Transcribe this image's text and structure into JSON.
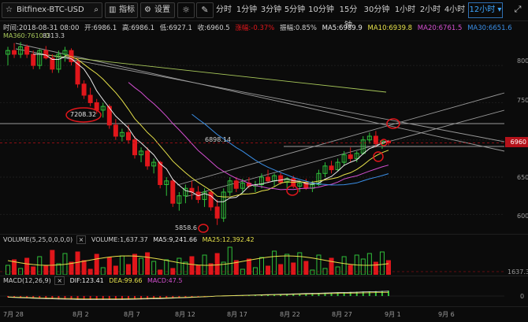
{
  "toolbar": {
    "symbol": "Bitfinex-BTC-USD",
    "indicators_label": "指标",
    "settings_label": "设置",
    "timeframes": [
      "分时",
      "1分钟",
      "3分钟",
      "5分钟",
      "10分钟",
      "15分钟",
      "30分钟",
      "1小时",
      "2小时",
      "4小时",
      "12小时"
    ],
    "active_timeframe": "12小时"
  },
  "info": {
    "time": "时间:2018-08-31 08:00",
    "open": "开:6986.1",
    "high": "高:6986.1",
    "low": "低:6927.1",
    "close": "收:6960.5",
    "change": "涨幅:-0.37%",
    "amplitude": "振幅:0.85%",
    "ma5": "MA5:6989.9",
    "ma10": "MA10:6939.8",
    "ma20": "MA20:6761.5",
    "ma30": "MA30:6651.6",
    "ma360": "MA360:7610.0",
    "peak_label": "8313.3"
  },
  "price_axis": {
    "ticks": [
      "800",
      "750",
      "700",
      "650",
      "600"
    ],
    "current_price": "6960"
  },
  "annotations": {
    "circled_price": "7208.32",
    "level_label": "6898.14",
    "low_label": "5858.6"
  },
  "volume": {
    "header": "VOLUME(5,25,0,0,0,0)",
    "volume": "VOLUME:1,637.37",
    "ma5": "MA5:9,241.66",
    "ma25": "MA25:12,392.42",
    "axis_label": "1637.3"
  },
  "macd": {
    "header": "MACD(12,26,9)",
    "dif": "DIF:123.41",
    "dea": "DEA:99.66",
    "macd": "MACD:47.5",
    "axis_label": "0"
  },
  "x_axis": {
    "labels": [
      "7月 28",
      "8月 2",
      "8月 7",
      "8月 12",
      "8月 17",
      "8月 22",
      "8月 27",
      "9月 1",
      "9月 6"
    ]
  },
  "colors": {
    "up": "#2fbf3a",
    "down": "#e0161b",
    "ma5": "#e9e9e9",
    "ma10": "#e5e04a",
    "ma20": "#d34fd0",
    "ma30": "#3a8ee6",
    "ma360": "#a8c85a",
    "accent": "#3ea6ff"
  },
  "chart_data": {
    "type": "candlestick",
    "series": [
      {
        "name": "BTC-USD 12h",
        "ohlc": [
          [
            8150,
            8250,
            8000,
            8200
          ],
          [
            8200,
            8300,
            8100,
            8150
          ],
          [
            8150,
            8313,
            8100,
            8250
          ],
          [
            8250,
            8280,
            8100,
            8150
          ],
          [
            8150,
            8200,
            7950,
            8000
          ],
          [
            8000,
            8220,
            7950,
            8200
          ],
          [
            8200,
            8260,
            8080,
            8100
          ],
          [
            8100,
            8150,
            7900,
            7950
          ],
          [
            7950,
            8200,
            7900,
            8150
          ],
          [
            8150,
            8250,
            8050,
            8200
          ],
          [
            8200,
            8230,
            8000,
            8050
          ],
          [
            8050,
            8100,
            7700,
            7750
          ],
          [
            7750,
            7800,
            7550,
            7600
          ],
          [
            7600,
            7700,
            7450,
            7500
          ],
          [
            7500,
            7550,
            7350,
            7400
          ],
          [
            7400,
            7500,
            7300,
            7450
          ],
          [
            7450,
            7480,
            7150,
            7200
          ],
          [
            7200,
            7280,
            7000,
            7050
          ],
          [
            7050,
            7150,
            6980,
            7100
          ],
          [
            7100,
            7200,
            6950,
            7000
          ],
          [
            7000,
            7050,
            6750,
            6800
          ],
          [
            6800,
            6900,
            6700,
            6850
          ],
          [
            6850,
            6900,
            6600,
            6650
          ],
          [
            6650,
            6750,
            6550,
            6700
          ],
          [
            6700,
            6720,
            6350,
            6400
          ],
          [
            6400,
            6500,
            6250,
            6450
          ],
          [
            6450,
            6480,
            6100,
            6150
          ],
          [
            6150,
            6300,
            6050,
            6250
          ],
          [
            6250,
            6400,
            6150,
            6350
          ],
          [
            6350,
            6450,
            6200,
            6300
          ],
          [
            6300,
            6380,
            6150,
            6200
          ],
          [
            6200,
            6350,
            6100,
            6300
          ],
          [
            6300,
            6320,
            6050,
            6100
          ],
          [
            6100,
            6200,
            5858,
            5950
          ],
          [
            5950,
            6350,
            5900,
            6300
          ],
          [
            6300,
            6500,
            6250,
            6450
          ],
          [
            6450,
            6500,
            6300,
            6350
          ],
          [
            6350,
            6480,
            6280,
            6420
          ],
          [
            6420,
            6500,
            6350,
            6380
          ],
          [
            6380,
            6450,
            6300,
            6400
          ],
          [
            6400,
            6550,
            6350,
            6500
          ],
          [
            6500,
            6600,
            6420,
            6450
          ],
          [
            6450,
            6550,
            6380,
            6520
          ],
          [
            6520,
            6560,
            6400,
            6430
          ],
          [
            6430,
            6500,
            6350,
            6480
          ],
          [
            6480,
            6520,
            6350,
            6380
          ],
          [
            6380,
            6450,
            6300,
            6420
          ],
          [
            6420,
            6480,
            6330,
            6350
          ],
          [
            6350,
            6450,
            6300,
            6400
          ],
          [
            6400,
            6600,
            6380,
            6550
          ],
          [
            6550,
            6700,
            6500,
            6650
          ],
          [
            6650,
            6720,
            6550,
            6600
          ],
          [
            6600,
            6750,
            6580,
            6700
          ],
          [
            6700,
            6850,
            6650,
            6800
          ],
          [
            6800,
            6900,
            6700,
            6750
          ],
          [
            6750,
            6850,
            6700,
            6820
          ],
          [
            6820,
            7050,
            6800,
            7000
          ],
          [
            7000,
            7100,
            6950,
            7050
          ],
          [
            7050,
            7120,
            6900,
            6950
          ],
          [
            6950,
            7000,
            6880,
            6986
          ],
          [
            6986,
            6986,
            6927,
            6960
          ]
        ]
      }
    ],
    "ylim": [
      5750,
      8350
    ]
  }
}
